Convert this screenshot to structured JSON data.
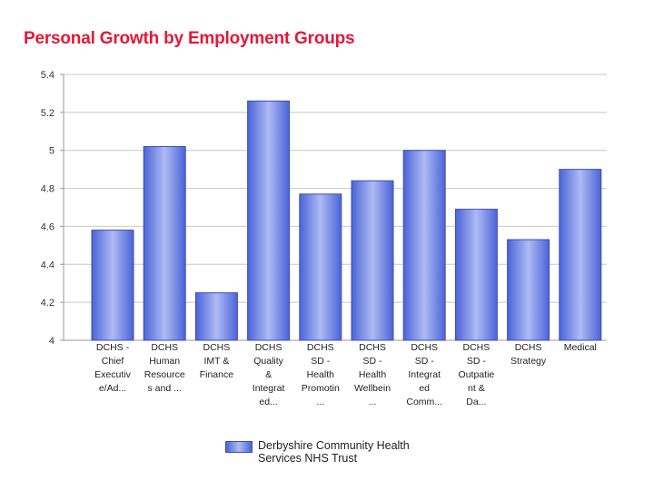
{
  "chart_data": {
    "type": "bar",
    "title": "Personal Growth by Employment Groups",
    "categories": [
      [
        "DCHS -",
        "Chief",
        "Executiv",
        "e/Ad..."
      ],
      [
        "DCHS",
        "Human",
        "Resource",
        "s and ..."
      ],
      [
        "DCHS",
        "IMT &",
        "Finance"
      ],
      [
        "DCHS",
        "Quality",
        "&",
        "Integrat",
        "ed..."
      ],
      [
        "DCHS",
        "SD -",
        "Health",
        "Promotin",
        "..."
      ],
      [
        "DCHS",
        "SD -",
        "Health",
        "Wellbein",
        "..."
      ],
      [
        "DCHS",
        "SD -",
        "Integrat",
        "ed",
        "Comm..."
      ],
      [
        "DCHS",
        "SD -",
        "Outpatie",
        "nt &",
        "Da..."
      ],
      [
        "DCHS",
        "Strategy"
      ],
      [
        "Medical"
      ]
    ],
    "series": [
      {
        "name": "Derbyshire Community Health Services NHS Trust",
        "values": [
          4.58,
          5.02,
          4.25,
          5.26,
          4.77,
          4.84,
          5.0,
          4.69,
          4.53,
          4.9
        ]
      }
    ],
    "yticks": [
      "4",
      "4.2",
      "4.4",
      "4.6",
      "4.8",
      "5",
      "5.2",
      "5.4"
    ],
    "ylim": [
      4,
      5.4
    ],
    "xlabel": "",
    "ylabel": "",
    "grid": true,
    "legend_position": "bottom"
  },
  "colors": {
    "title": "#e31937",
    "bar_dark": "#4b63d8",
    "bar_light": "#aebbf4",
    "bar_edge": "#3b4fb8",
    "grid": "#c8c8c8",
    "axis": "#9a9a9a"
  }
}
